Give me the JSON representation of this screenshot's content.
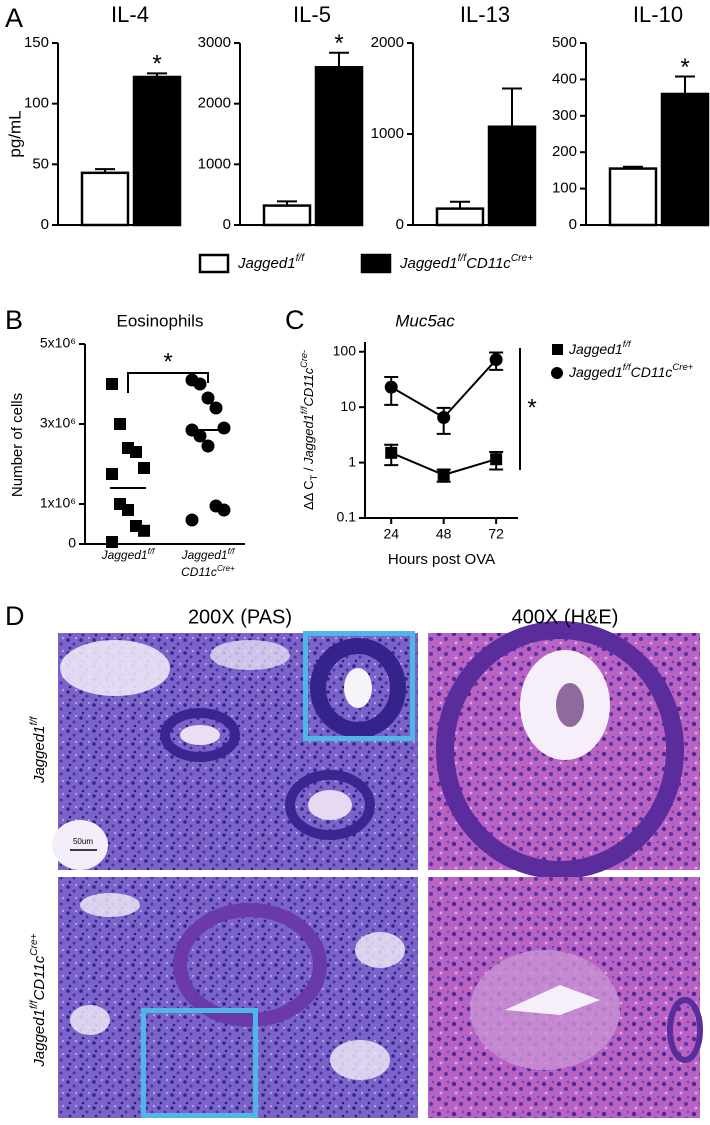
{
  "panel_labels": [
    "A",
    "B",
    "C",
    "D"
  ],
  "chart_data": [
    {
      "type": "bar",
      "title": "IL-4",
      "ylabel": "pg/mL",
      "values": [
        43,
        122
      ],
      "errors": [
        3,
        3
      ],
      "colors": [
        "#ffffff",
        "#000000"
      ],
      "ylim": [
        0,
        150
      ],
      "yticks": [
        0,
        50,
        100,
        150
      ],
      "annotations": [
        {
          "index": 1,
          "text": "*"
        }
      ]
    },
    {
      "type": "bar",
      "title": "IL-5",
      "values": [
        320,
        2600
      ],
      "errors": [
        70,
        240
      ],
      "colors": [
        "#ffffff",
        "#000000"
      ],
      "ylim": [
        0,
        3000
      ],
      "yticks": [
        0,
        1000,
        2000,
        3000
      ],
      "annotations": [
        {
          "index": 1,
          "text": "*"
        }
      ]
    },
    {
      "type": "bar",
      "title": "IL-13",
      "values": [
        180,
        1080
      ],
      "errors": [
        75,
        420
      ],
      "colors": [
        "#ffffff",
        "#000000"
      ],
      "ylim": [
        0,
        2000
      ],
      "yticks": [
        0,
        1000,
        2000
      ]
    },
    {
      "type": "bar",
      "title": "IL-10",
      "values": [
        155,
        360
      ],
      "errors": [
        5,
        48
      ],
      "colors": [
        "#ffffff",
        "#000000"
      ],
      "ylim": [
        0,
        500
      ],
      "yticks": [
        0,
        100,
        200,
        300,
        400,
        500
      ],
      "annotations": [
        {
          "index": 1,
          "text": "*"
        }
      ]
    },
    {
      "type": "dot",
      "title": "Eosinophils",
      "ylabel": "Number of cells",
      "ylim": [
        0,
        5000000
      ],
      "yticks": [
        0,
        {
          "value": 1000000,
          "label": "1x10⁶"
        },
        {
          "value": 3000000,
          "label": "3x10⁶"
        },
        {
          "value": 5000000,
          "label": "5x10⁶"
        }
      ],
      "groups": [
        {
          "label": [
            [
              "Jagged1",
              "f/f"
            ]
          ],
          "marker": "square",
          "color": "#000000",
          "values": [
            4000000,
            3000000,
            2400000,
            2300000,
            1900000,
            1750000,
            1000000,
            850000,
            450000,
            330000,
            50000
          ],
          "mean": 1400000
        },
        {
          "label": [
            [
              "Jagged1",
              "f/f"
            ],
            [
              "CD11c",
              "Cre+"
            ]
          ],
          "marker": "circle",
          "color": "#000000",
          "values": [
            4100000,
            4000000,
            3650000,
            3400000,
            2900000,
            2850000,
            2700000,
            2450000,
            950000,
            850000,
            600000
          ],
          "mean": 2850000
        }
      ],
      "significance": {
        "text": "*",
        "between": [
          0,
          1
        ]
      }
    },
    {
      "type": "line",
      "title": "Muc5ac",
      "xlabel": "Hours post OVA",
      "ylabel": [
        {
          "text": "ΔΔ C"
        },
        {
          "text": "T",
          "script": "sub"
        },
        {
          "text": " / "
        },
        {
          "text": "Jagged1",
          "italic": true
        },
        {
          "text": "f/f",
          "script": "super",
          "italic": true
        },
        {
          "text": "CD11c",
          "italic": true
        },
        {
          "text": "Cre-",
          "script": "super",
          "italic": true
        }
      ],
      "log_y": true,
      "x": [
        24,
        48,
        72
      ],
      "xlim": [
        12,
        82
      ],
      "xticks": [
        24,
        48,
        72
      ],
      "ylim": [
        0.1,
        150
      ],
      "yticks": [
        0.1,
        1,
        10,
        100
      ],
      "series": [
        {
          "name": [
            "Jagged1",
            "f/f"
          ],
          "marker": "square",
          "color": "#000000",
          "values": [
            1.5,
            0.6,
            1.15
          ],
          "errors": [
            0.6,
            0.15,
            0.4
          ]
        },
        {
          "name": [
            "Jagged1",
            "f/f",
            "CD11c",
            "Cre+"
          ],
          "marker": "circle",
          "color": "#000000",
          "values": [
            23,
            6.5,
            72
          ],
          "errors": [
            12,
            3.2,
            25
          ]
        }
      ],
      "legend": "right",
      "significance": {
        "text": "*"
      }
    }
  ],
  "legend": {
    "entries": [
      {
        "name": [
          "Jagged1",
          "f/f"
        ],
        "color": "#ffffff"
      },
      {
        "name": [
          "Jagged1",
          "f/f",
          "CD11c",
          "Cre+"
        ],
        "color": "#000000"
      }
    ]
  },
  "histology": {
    "columns": [
      "200X (PAS)",
      "400X (H&E)"
    ],
    "rows": [
      [
        "Jagged1",
        "f/f"
      ],
      [
        "Jagged1",
        "f/f",
        "CD11c",
        "Cre+"
      ]
    ],
    "scale_bar": "50um"
  }
}
